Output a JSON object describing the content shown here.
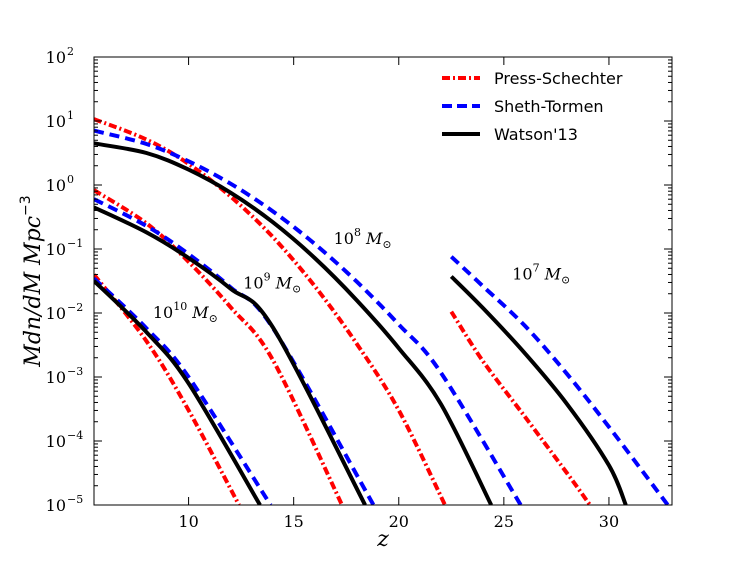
{
  "chart_data": {
    "type": "line",
    "title": "",
    "xlabel": "z",
    "ylabel": "Mdn/dM Mpc",
    "ylabel_sup": "−3",
    "xlim": [
      5.5,
      33
    ],
    "ylim_log10": [
      -5,
      2
    ],
    "yscale": "log",
    "x_ticks": [
      10,
      15,
      20,
      25,
      30
    ],
    "y_ticks": [
      {
        "base": "10",
        "exp": "2"
      },
      {
        "base": "10",
        "exp": "1"
      },
      {
        "base": "10",
        "exp": "0"
      },
      {
        "base": "10",
        "exp": "−1"
      },
      {
        "base": "10",
        "exp": "−2"
      },
      {
        "base": "10",
        "exp": "−3"
      },
      {
        "base": "10",
        "exp": "−4"
      },
      {
        "base": "10",
        "exp": "−5"
      }
    ],
    "y_tick_values_log10": [
      2,
      1,
      0,
      -1,
      -2,
      -3,
      -4,
      -5
    ],
    "legend": {
      "location": "top-right",
      "entries": [
        {
          "label": "Press-Schechter",
          "color": "#ff0000",
          "style": "dashdot"
        },
        {
          "label": "Sheth-Tormen",
          "color": "#0000ff",
          "style": "dashed"
        },
        {
          "label": "Watson'13",
          "color": "#000000",
          "style": "solid"
        }
      ]
    },
    "series": [
      {
        "name": "Press-Schechter 10^10 M_sun",
        "model": "Press-Schechter",
        "mass": "10^10",
        "color": "#ff0000",
        "style": "dashdot",
        "x": [
          5.5,
          8,
          10,
          12.4
        ],
        "log10_y": [
          -1.4,
          -2.44,
          -3.52,
          -5.0
        ]
      },
      {
        "name": "Sheth-Tormen 10^10 M_sun",
        "model": "Sheth-Tormen",
        "mass": "10^10",
        "color": "#0000ff",
        "style": "dashed",
        "x": [
          5.5,
          8,
          10,
          13.9
        ],
        "log10_y": [
          -1.46,
          -2.24,
          -3.0,
          -5.0
        ]
      },
      {
        "name": "Watson'13 10^10 M_sun",
        "model": "Watson'13",
        "mass": "10^10",
        "color": "#000000",
        "style": "solid",
        "x": [
          5.5,
          8,
          10,
          13.4
        ],
        "log10_y": [
          -1.5,
          -2.3,
          -3.1,
          -5.0
        ]
      },
      {
        "name": "Press-Schechter 10^9 M_sun",
        "model": "Press-Schechter",
        "mass": "10^9",
        "color": "#ff0000",
        "style": "dashdot",
        "x": [
          5.5,
          8,
          10,
          12,
          14,
          17.3
        ],
        "log10_y": [
          -0.08,
          -0.6,
          -1.2,
          -1.91,
          -2.73,
          -5.0
        ]
      },
      {
        "name": "Sheth-Tormen 10^9 M_sun",
        "model": "Sheth-Tormen",
        "mass": "10^9",
        "color": "#0000ff",
        "style": "dashed",
        "x": [
          5.5,
          8,
          10,
          12,
          14,
          18.8
        ],
        "log10_y": [
          -0.22,
          -0.64,
          -1.08,
          -1.6,
          -2.23,
          -5.0
        ]
      },
      {
        "name": "Watson'13 10^9 M_sun",
        "model": "Watson'13",
        "mass": "10^9",
        "color": "#000000",
        "style": "solid",
        "x": [
          5.5,
          8,
          10,
          12,
          14,
          18.4
        ],
        "log10_y": [
          -0.35,
          -0.74,
          -1.14,
          -1.62,
          -2.22,
          -5.0
        ]
      },
      {
        "name": "Press-Schechter 10^8 M_sun",
        "model": "Press-Schechter",
        "mass": "10^8",
        "color": "#ff0000",
        "style": "dashdot",
        "x": [
          5.5,
          8,
          10,
          12,
          14,
          16,
          18,
          20,
          22.2
        ],
        "log10_y": [
          1.03,
          0.71,
          0.33,
          -0.18,
          -0.81,
          -1.58,
          -2.48,
          -3.52,
          -5.0
        ]
      },
      {
        "name": "Sheth-Tormen 10^8 M_sun",
        "model": "Sheth-Tormen",
        "mass": "10^8",
        "color": "#0000ff",
        "style": "dashed",
        "x": [
          5.5,
          8,
          10,
          12,
          14,
          16,
          18,
          20,
          22,
          25.8
        ],
        "log10_y": [
          0.85,
          0.64,
          0.37,
          0.02,
          -0.41,
          -0.92,
          -1.51,
          -2.18,
          -2.93,
          -5.0
        ]
      },
      {
        "name": "Watson'13 10^8 M_sun",
        "model": "Watson'13",
        "mass": "10^8",
        "color": "#000000",
        "style": "solid",
        "x": [
          5.5,
          8,
          10,
          12,
          14,
          16,
          18,
          20,
          22,
          24.4
        ],
        "log10_y": [
          0.65,
          0.5,
          0.24,
          -0.12,
          -0.58,
          -1.14,
          -1.8,
          -2.55,
          -3.42,
          -5.0
        ]
      },
      {
        "name": "Press-Schechter 10^7 M_sun",
        "model": "Press-Schechter",
        "mass": "10^7",
        "color": "#ff0000",
        "style": "dashdot",
        "x": [
          22.5,
          24,
          26,
          28,
          29.1
        ],
        "log10_y": [
          -1.98,
          -2.75,
          -3.62,
          -4.5,
          -5.0
        ]
      },
      {
        "name": "Sheth-Tormen 10^7 M_sun",
        "model": "Sheth-Tormen",
        "mass": "10^7",
        "color": "#0000ff",
        "style": "dashed",
        "x": [
          22.5,
          24,
          26,
          28,
          30,
          32.8
        ],
        "log10_y": [
          -1.12,
          -1.58,
          -2.2,
          -2.95,
          -3.78,
          -5.0
        ]
      },
      {
        "name": "Watson'13 10^7 M_sun",
        "model": "Watson'13",
        "mass": "10^7",
        "color": "#000000",
        "style": "solid",
        "x": [
          22.5,
          24,
          26,
          28,
          30,
          30.8
        ],
        "log10_y": [
          -1.43,
          -1.92,
          -2.63,
          -3.42,
          -4.38,
          -5.0
        ]
      }
    ],
    "annotations": [
      {
        "id": "m10",
        "base": "10",
        "exp": "10",
        "unit": "M",
        "sub": "⊙",
        "x": 8.3,
        "log10_y": -2.08
      },
      {
        "id": "m9",
        "base": "10",
        "exp": "9",
        "unit": "M",
        "sub": "⊙",
        "x": 12.6,
        "log10_y": -1.62
      },
      {
        "id": "m8",
        "base": "10",
        "exp": "8",
        "unit": "M",
        "sub": "⊙",
        "x": 16.9,
        "log10_y": -0.92
      },
      {
        "id": "m7",
        "base": "10",
        "exp": "7",
        "unit": "M",
        "sub": "⊙",
        "x": 25.4,
        "log10_y": -1.48
      }
    ]
  }
}
